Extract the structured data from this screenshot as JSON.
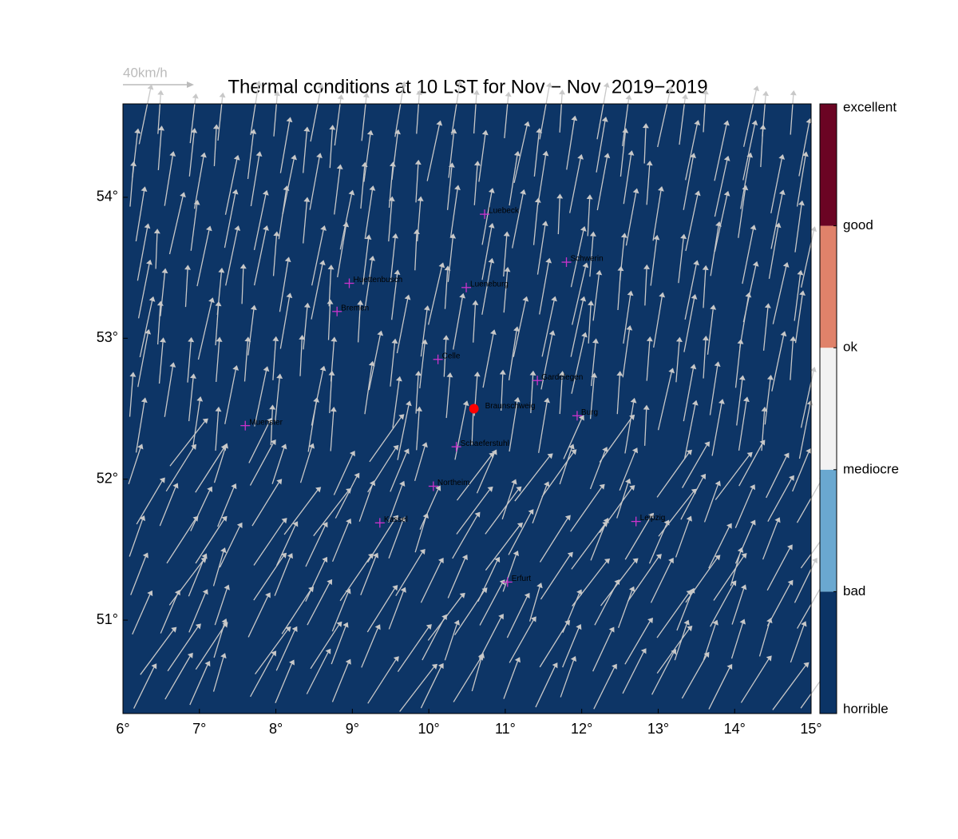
{
  "chart_data": {
    "type": "map",
    "title": "Thermal conditions at 10 LST for Nov − Nov  2019−2019",
    "wind_scale_label": "40km/h",
    "background": "#0d3566",
    "xlim": [
      6,
      15
    ],
    "ylim": [
      50.337,
      54.663
    ],
    "xticks": [
      {
        "value": 6,
        "label": "6°"
      },
      {
        "value": 7,
        "label": "7°"
      },
      {
        "value": 8,
        "label": "8°"
      },
      {
        "value": 9,
        "label": "9°"
      },
      {
        "value": 10,
        "label": "10°"
      },
      {
        "value": 11,
        "label": "11°"
      },
      {
        "value": 12,
        "label": "12°"
      },
      {
        "value": 13,
        "label": "13°"
      },
      {
        "value": 14,
        "label": "14°"
      },
      {
        "value": 15,
        "label": "15°"
      }
    ],
    "yticks": [
      {
        "value": 51,
        "label": "51°"
      },
      {
        "value": 52,
        "label": "52°"
      },
      {
        "value": 53,
        "label": "53°"
      },
      {
        "value": 54,
        "label": "54°"
      }
    ],
    "cities": [
      {
        "name": "Luebeck",
        "lon": 10.73,
        "lat": 53.88
      },
      {
        "name": "Schwerin",
        "lon": 11.8,
        "lat": 53.54
      },
      {
        "name": "Huettenbusch",
        "lon": 8.96,
        "lat": 53.39
      },
      {
        "name": "Lueneburg",
        "lon": 10.49,
        "lat": 53.36
      },
      {
        "name": "Bremen",
        "lon": 8.8,
        "lat": 53.19
      },
      {
        "name": "Celle",
        "lon": 10.12,
        "lat": 52.85
      },
      {
        "name": "Gardelegen",
        "lon": 11.42,
        "lat": 52.7
      },
      {
        "name": "Burg",
        "lon": 11.94,
        "lat": 52.45
      },
      {
        "name": "Muenster",
        "lon": 7.6,
        "lat": 52.38
      },
      {
        "name": "Schaeferstuhl",
        "lon": 10.36,
        "lat": 52.23
      },
      {
        "name": "Northeim",
        "lon": 10.06,
        "lat": 51.95
      },
      {
        "name": "Kassel",
        "lon": 9.36,
        "lat": 51.69
      },
      {
        "name": "Leipzig",
        "lon": 12.71,
        "lat": 51.7
      },
      {
        "name": "Erfurt",
        "lon": 11.03,
        "lat": 51.27
      }
    ],
    "highlight": {
      "name": "Braunschweig",
      "lon": 10.59,
      "lat": 52.5,
      "color": "#ff0000"
    },
    "city_color": "#cc33cc",
    "colorbar": {
      "labels": [
        "horrible",
        "bad",
        "mediocre",
        "ok",
        "good",
        "excellent"
      ],
      "colors": [
        "#0b3466",
        "#6aa8d0",
        "#f2f2f2",
        "#e0826a",
        "#6b0423"
      ]
    }
  }
}
